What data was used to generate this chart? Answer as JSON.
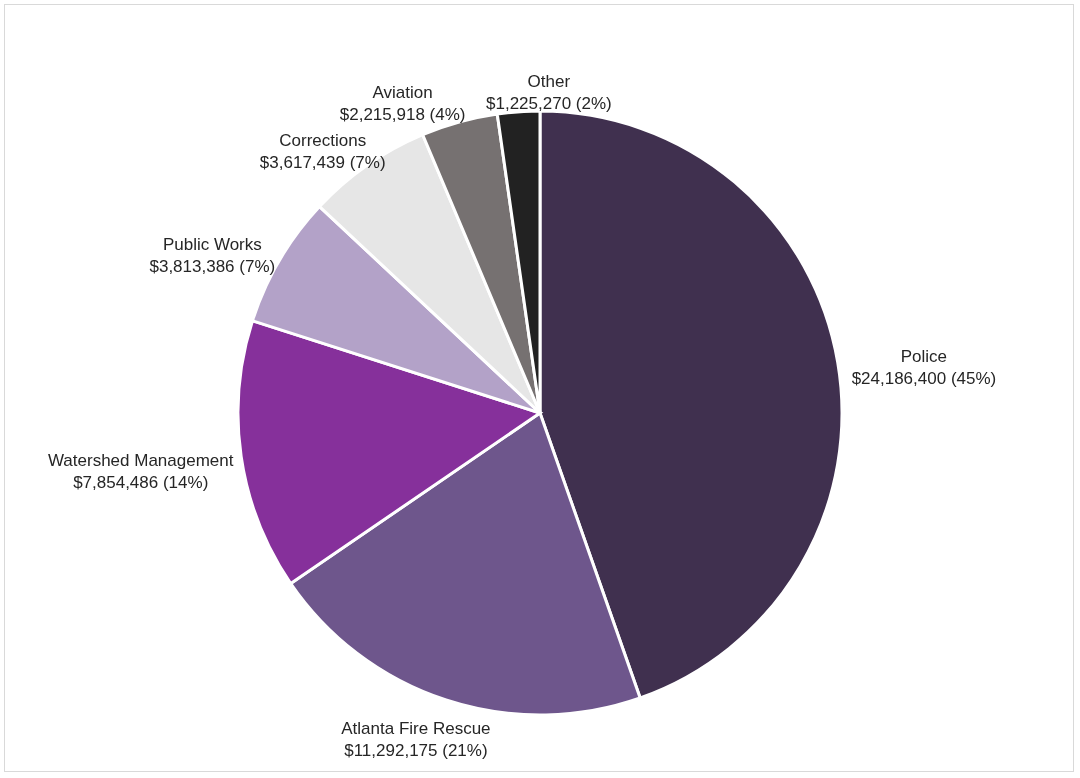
{
  "chart_data": {
    "type": "pie",
    "categories": [
      "Police",
      "Atlanta Fire Rescue",
      "Watershed Management",
      "Public Works",
      "Corrections",
      "Aviation",
      "Other"
    ],
    "values": [
      24186400,
      11292175,
      7854486,
      3813386,
      3617439,
      2215918,
      1225270
    ],
    "colors": [
      "#40304f",
      "#6e568c",
      "#86309b",
      "#b3a2c8",
      "#e6e6e6",
      "#767171",
      "#222222"
    ],
    "value_labels": [
      "$24,186,400 (45%)",
      "$11,292,175 (21%)",
      "$7,854,486 (14%)",
      "$3,813,386 (7%)",
      "$3,617,439 (7%)",
      "$2,215,918 (4%)",
      "$1,225,270 (2%)"
    ]
  }
}
